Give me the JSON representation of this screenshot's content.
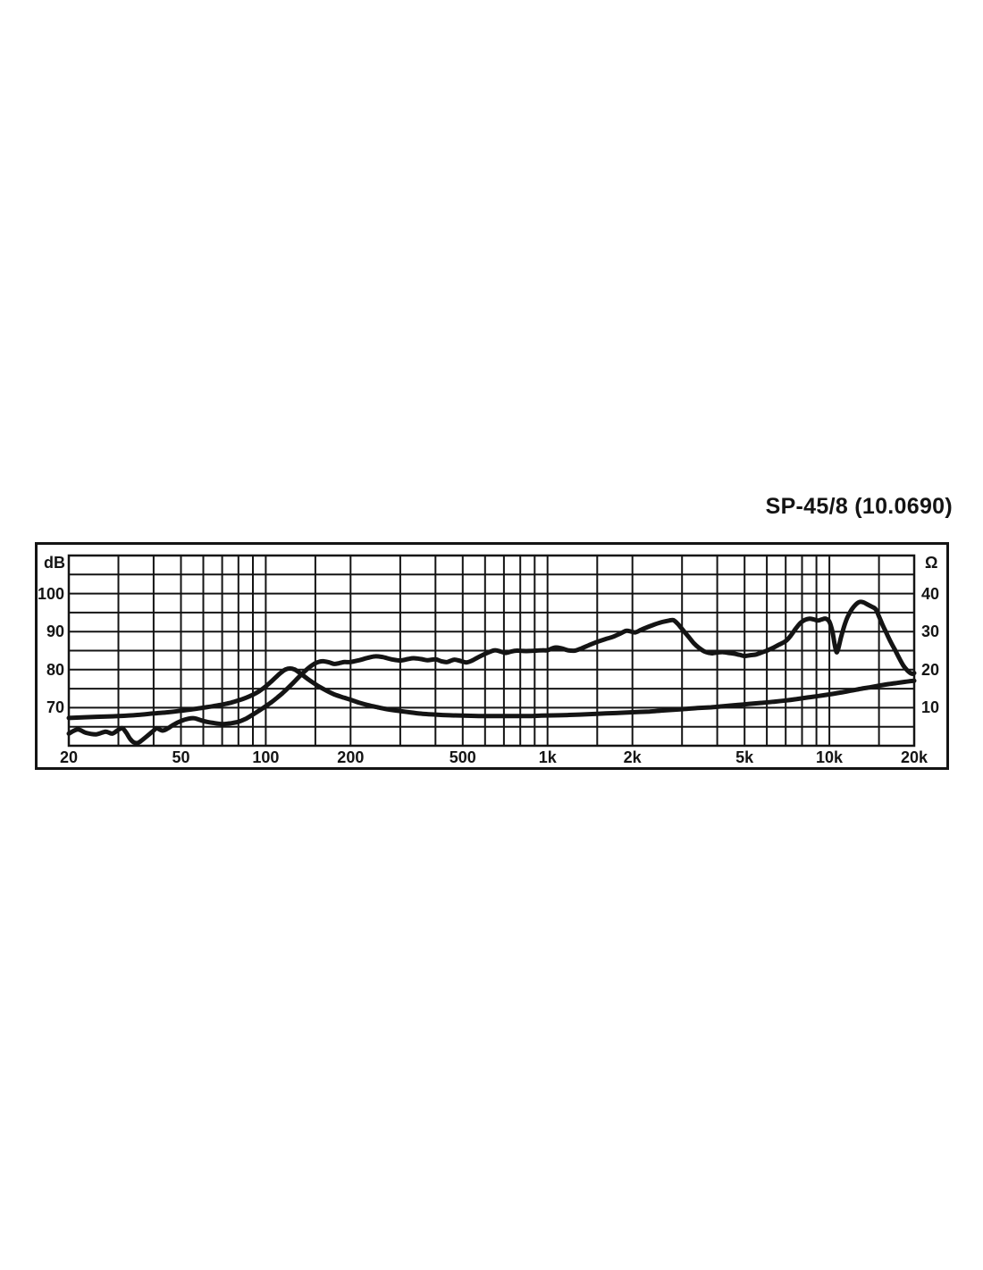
{
  "title": "SP-45/8  (10.0690)",
  "chart_data": {
    "type": "line",
    "title": "SP-45/8  (10.0690)",
    "description": "Speaker frequency response (SPL, dB) and impedance (Ω) versus frequency, log x-axis",
    "grid": "on",
    "ink_color": "#141414",
    "background_color": "#ffffff",
    "x_axis": {
      "scale": "log",
      "unit": "Hz",
      "min_hz": 20,
      "max_hz": 20000,
      "tick_hz": [
        20,
        50,
        100,
        200,
        500,
        1000,
        2000,
        5000,
        10000,
        20000
      ],
      "tick_labels": [
        "20",
        "50",
        "100",
        "200",
        "500",
        "1k",
        "2k",
        "5k",
        "10k",
        "20k"
      ],
      "gridlines_hz": [
        20,
        30,
        40,
        50,
        60,
        70,
        80,
        90,
        100,
        150,
        200,
        300,
        400,
        500,
        600,
        700,
        800,
        900,
        1000,
        1500,
        2000,
        3000,
        4000,
        5000,
        6000,
        7000,
        8000,
        9000,
        10000,
        15000,
        20000
      ]
    },
    "left_axis": {
      "unit": "dB",
      "min": 60,
      "max": 110,
      "gridline_step": 5,
      "tick_values": [
        100,
        90,
        80,
        70
      ],
      "tick_labels": [
        "100",
        "90",
        "80",
        "70"
      ]
    },
    "right_axis": {
      "unit": "Ω",
      "min": 0,
      "max": 50,
      "tick_values": [
        40,
        30,
        20,
        10
      ],
      "tick_labels": [
        "40",
        "30",
        "20",
        "10"
      ]
    },
    "series": [
      {
        "name": "frequency-response-spl",
        "axis": "left",
        "unit": "dB",
        "points": [
          [
            20,
            63.2
          ],
          [
            21.5,
            64.3
          ],
          [
            23,
            63.4
          ],
          [
            25,
            63.0
          ],
          [
            27,
            63.7
          ],
          [
            28.5,
            63.2
          ],
          [
            30,
            64.2
          ],
          [
            31,
            64.6
          ],
          [
            32,
            63.4
          ],
          [
            33,
            61.8
          ],
          [
            34,
            60.9
          ],
          [
            35,
            60.7
          ],
          [
            36,
            61.2
          ],
          [
            38,
            62.6
          ],
          [
            40,
            64.0
          ],
          [
            41,
            64.6
          ],
          [
            43,
            64.0
          ],
          [
            45,
            64.6
          ],
          [
            47,
            65.5
          ],
          [
            50,
            66.5
          ],
          [
            53,
            67.1
          ],
          [
            56,
            67.2
          ],
          [
            60,
            66.5
          ],
          [
            65,
            66.0
          ],
          [
            70,
            65.7
          ],
          [
            75,
            65.9
          ],
          [
            80,
            66.3
          ],
          [
            85,
            67.1
          ],
          [
            90,
            68.2
          ],
          [
            95,
            69.3
          ],
          [
            100,
            70.4
          ],
          [
            105,
            71.5
          ],
          [
            110,
            72.7
          ],
          [
            115,
            73.9
          ],
          [
            120,
            75.2
          ],
          [
            125,
            76.5
          ],
          [
            130,
            77.8
          ],
          [
            135,
            79.0
          ],
          [
            140,
            80.1
          ],
          [
            145,
            81.0
          ],
          [
            150,
            81.7
          ],
          [
            155,
            82.1
          ],
          [
            160,
            82.2
          ],
          [
            168,
            81.9
          ],
          [
            175,
            81.5
          ],
          [
            182,
            81.7
          ],
          [
            190,
            82.0
          ],
          [
            200,
            82.0
          ],
          [
            215,
            82.5
          ],
          [
            230,
            83.1
          ],
          [
            245,
            83.5
          ],
          [
            260,
            83.3
          ],
          [
            280,
            82.7
          ],
          [
            300,
            82.4
          ],
          [
            320,
            82.8
          ],
          [
            335,
            83.0
          ],
          [
            355,
            82.8
          ],
          [
            375,
            82.5
          ],
          [
            400,
            82.7
          ],
          [
            420,
            82.2
          ],
          [
            440,
            82.0
          ],
          [
            465,
            82.6
          ],
          [
            490,
            82.3
          ],
          [
            515,
            81.9
          ],
          [
            540,
            82.4
          ],
          [
            565,
            83.2
          ],
          [
            590,
            83.9
          ],
          [
            620,
            84.6
          ],
          [
            650,
            85.1
          ],
          [
            680,
            84.8
          ],
          [
            710,
            84.4
          ],
          [
            745,
            84.8
          ],
          [
            780,
            85.0
          ],
          [
            820,
            84.9
          ],
          [
            860,
            84.9
          ],
          [
            910,
            85.0
          ],
          [
            960,
            85.1
          ],
          [
            1000,
            85.1
          ],
          [
            1060,
            85.8
          ],
          [
            1120,
            85.6
          ],
          [
            1180,
            85.1
          ],
          [
            1250,
            85.0
          ],
          [
            1320,
            85.6
          ],
          [
            1400,
            86.4
          ],
          [
            1500,
            87.3
          ],
          [
            1600,
            88.0
          ],
          [
            1700,
            88.6
          ],
          [
            1800,
            89.4
          ],
          [
            1900,
            90.2
          ],
          [
            1980,
            90.0
          ],
          [
            2050,
            89.8
          ],
          [
            2150,
            90.5
          ],
          [
            2250,
            91.1
          ],
          [
            2400,
            91.9
          ],
          [
            2550,
            92.5
          ],
          [
            2700,
            92.9
          ],
          [
            2800,
            93.0
          ],
          [
            2900,
            92.0
          ],
          [
            3000,
            90.7
          ],
          [
            3150,
            88.8
          ],
          [
            3300,
            87.0
          ],
          [
            3450,
            85.7
          ],
          [
            3600,
            84.8
          ],
          [
            3750,
            84.4
          ],
          [
            3850,
            84.3
          ],
          [
            4000,
            84.5
          ],
          [
            4200,
            84.6
          ],
          [
            4400,
            84.4
          ],
          [
            4600,
            84.2
          ],
          [
            4800,
            83.9
          ],
          [
            5000,
            83.6
          ],
          [
            5250,
            83.8
          ],
          [
            5500,
            84.0
          ],
          [
            5750,
            84.5
          ],
          [
            6000,
            85.0
          ],
          [
            6300,
            85.7
          ],
          [
            6600,
            86.5
          ],
          [
            7000,
            87.5
          ],
          [
            7300,
            89.0
          ],
          [
            7600,
            90.8
          ],
          [
            7900,
            92.3
          ],
          [
            8200,
            93.1
          ],
          [
            8500,
            93.4
          ],
          [
            8800,
            93.2
          ],
          [
            9100,
            92.9
          ],
          [
            9400,
            93.2
          ],
          [
            9700,
            93.4
          ],
          [
            10000,
            92.6
          ],
          [
            10250,
            90.0
          ],
          [
            10450,
            86.5
          ],
          [
            10600,
            84.6
          ],
          [
            10750,
            85.5
          ],
          [
            11000,
            88.5
          ],
          [
            11300,
            91.5
          ],
          [
            11600,
            93.8
          ],
          [
            12000,
            95.8
          ],
          [
            12400,
            97.1
          ],
          [
            12800,
            97.8
          ],
          [
            13200,
            97.7
          ],
          [
            13600,
            97.2
          ],
          [
            14100,
            96.6
          ],
          [
            14600,
            95.9
          ],
          [
            15000,
            94.0
          ],
          [
            15400,
            92.0
          ],
          [
            15900,
            89.8
          ],
          [
            16500,
            87.3
          ],
          [
            17100,
            85.2
          ],
          [
            17700,
            83.0
          ],
          [
            18300,
            81.1
          ],
          [
            18900,
            79.8
          ],
          [
            19400,
            79.1
          ],
          [
            19800,
            78.9
          ],
          [
            20000,
            79.1
          ]
        ]
      },
      {
        "name": "impedance",
        "axis": "right",
        "unit": "Ω",
        "points": [
          [
            20,
            7.3
          ],
          [
            25,
            7.6
          ],
          [
            30,
            7.8
          ],
          [
            35,
            8.1
          ],
          [
            40,
            8.5
          ],
          [
            45,
            8.8
          ],
          [
            50,
            9.2
          ],
          [
            55,
            9.6
          ],
          [
            60,
            10.0
          ],
          [
            65,
            10.4
          ],
          [
            70,
            10.8
          ],
          [
            75,
            11.3
          ],
          [
            80,
            11.9
          ],
          [
            85,
            12.6
          ],
          [
            90,
            13.4
          ],
          [
            95,
            14.4
          ],
          [
            100,
            15.6
          ],
          [
            105,
            17.0
          ],
          [
            110,
            18.4
          ],
          [
            114,
            19.4
          ],
          [
            118,
            20.1
          ],
          [
            122,
            20.3
          ],
          [
            126,
            20.1
          ],
          [
            130,
            19.5
          ],
          [
            135,
            18.6
          ],
          [
            140,
            17.7
          ],
          [
            147,
            16.6
          ],
          [
            155,
            15.5
          ],
          [
            165,
            14.4
          ],
          [
            175,
            13.5
          ],
          [
            190,
            12.6
          ],
          [
            200,
            12.1
          ],
          [
            215,
            11.3
          ],
          [
            230,
            10.7
          ],
          [
            250,
            10.1
          ],
          [
            270,
            9.6
          ],
          [
            300,
            9.1
          ],
          [
            330,
            8.7
          ],
          [
            360,
            8.4
          ],
          [
            400,
            8.2
          ],
          [
            450,
            8.0
          ],
          [
            500,
            7.9
          ],
          [
            570,
            7.8
          ],
          [
            650,
            7.8
          ],
          [
            750,
            7.8
          ],
          [
            850,
            7.8
          ],
          [
            950,
            7.9
          ],
          [
            1100,
            8.0
          ],
          [
            1300,
            8.2
          ],
          [
            1500,
            8.4
          ],
          [
            1750,
            8.6
          ],
          [
            2000,
            8.8
          ],
          [
            2300,
            9.0
          ],
          [
            2600,
            9.3
          ],
          [
            3000,
            9.6
          ],
          [
            3400,
            9.9
          ],
          [
            3800,
            10.1
          ],
          [
            4200,
            10.4
          ],
          [
            4700,
            10.7
          ],
          [
            5200,
            11.0
          ],
          [
            5800,
            11.3
          ],
          [
            6400,
            11.6
          ],
          [
            7000,
            11.9
          ],
          [
            7700,
            12.3
          ],
          [
            8400,
            12.7
          ],
          [
            9200,
            13.1
          ],
          [
            10000,
            13.5
          ],
          [
            11000,
            14.0
          ],
          [
            12000,
            14.5
          ],
          [
            13000,
            15.0
          ],
          [
            14000,
            15.4
          ],
          [
            15000,
            15.8
          ],
          [
            16200,
            16.2
          ],
          [
            17400,
            16.5
          ],
          [
            18600,
            16.8
          ],
          [
            19400,
            17.0
          ],
          [
            20000,
            17.1
          ]
        ]
      }
    ]
  }
}
